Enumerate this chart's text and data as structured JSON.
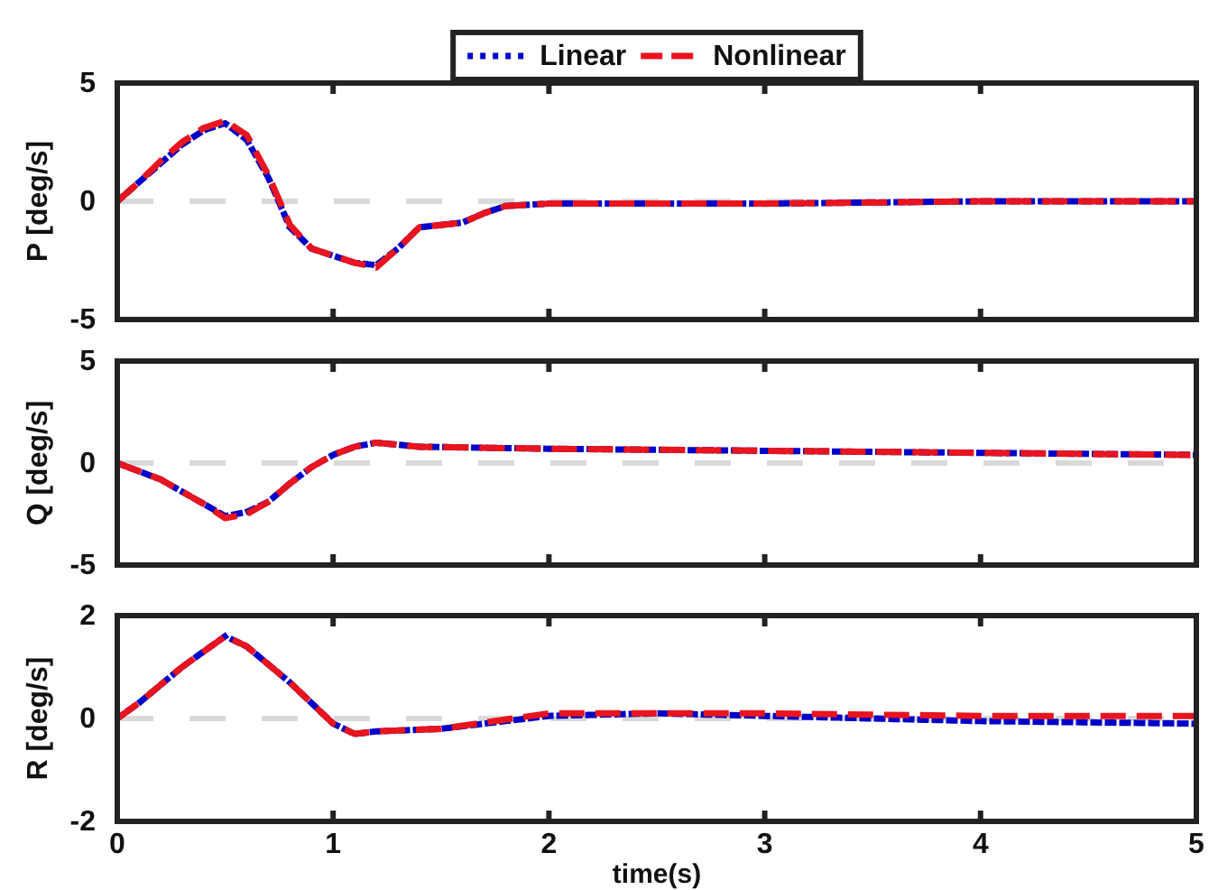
{
  "chart_data": [
    {
      "type": "line",
      "ylabel": "P [deg/s]",
      "xlim": [
        0,
        5
      ],
      "xticks": [
        0,
        1,
        2,
        3,
        4,
        5
      ],
      "ylim": [
        -5,
        5
      ],
      "yticks": [
        -5,
        0,
        5
      ],
      "tick_labels": "y",
      "legend": "top",
      "ref_lines": [
        {
          "axis": "y",
          "value": 0,
          "color": "#d9d9d9",
          "line_style": "dashed"
        }
      ],
      "series": [
        {
          "name": "Linear",
          "color": "#0000c8",
          "line_style": "dotted",
          "x": [
            0,
            0.1,
            0.2,
            0.3,
            0.4,
            0.5,
            0.6,
            0.7,
            0.8,
            0.9,
            1.0,
            1.1,
            1.2,
            1.3,
            1.4,
            1.5,
            1.6,
            1.7,
            1.8,
            2.0,
            2.5,
            3,
            4,
            5
          ],
          "values": [
            0,
            0.8,
            1.6,
            2.4,
            3.0,
            3.3,
            2.6,
            1.0,
            -1.1,
            -2.0,
            -2.3,
            -2.6,
            -2.7,
            -2.0,
            -1.1,
            -1.0,
            -0.9,
            -0.5,
            -0.2,
            -0.1,
            -0.1,
            -0.1,
            0,
            0
          ]
        },
        {
          "name": "Nonlinear",
          "color": "#e8141e",
          "line_style": "dashed",
          "x": [
            0,
            0.1,
            0.2,
            0.3,
            0.4,
            0.5,
            0.6,
            0.7,
            0.8,
            0.9,
            1.0,
            1.1,
            1.2,
            1.3,
            1.4,
            1.5,
            1.6,
            1.7,
            1.8,
            2.0,
            2.5,
            3,
            4,
            5
          ],
          "values": [
            0,
            0.8,
            1.7,
            2.5,
            3.1,
            3.4,
            2.8,
            1.1,
            -1.0,
            -2.0,
            -2.3,
            -2.6,
            -2.8,
            -2.0,
            -1.1,
            -1.0,
            -0.9,
            -0.5,
            -0.2,
            -0.1,
            -0.1,
            -0.1,
            0,
            0
          ]
        }
      ]
    },
    {
      "type": "line",
      "ylabel": "Q [deg/s]",
      "xlim": [
        0,
        5
      ],
      "xticks": [
        0,
        1,
        2,
        3,
        4,
        5
      ],
      "ylim": [
        -5,
        5
      ],
      "yticks": [
        -5,
        0,
        5
      ],
      "tick_labels": "y",
      "ref_lines": [
        {
          "axis": "y",
          "value": 0,
          "color": "#d9d9d9",
          "line_style": "dashed"
        }
      ],
      "series": [
        {
          "color": "#0000c8",
          "line_style": "dotted",
          "x": [
            0,
            0.2,
            0.4,
            0.5,
            0.6,
            0.7,
            0.8,
            0.9,
            1.0,
            1.1,
            1.2,
            1.4,
            2,
            3,
            4,
            5
          ],
          "values": [
            0,
            -0.8,
            -2.0,
            -2.6,
            -2.4,
            -1.9,
            -1.0,
            -0.2,
            0.4,
            0.8,
            1.0,
            0.8,
            0.7,
            0.6,
            0.5,
            0.4
          ]
        },
        {
          "color": "#e8141e",
          "line_style": "dashed",
          "x": [
            0,
            0.2,
            0.4,
            0.5,
            0.6,
            0.7,
            0.8,
            0.9,
            1.0,
            1.1,
            1.2,
            1.4,
            2,
            3,
            4,
            5
          ],
          "values": [
            0,
            -0.8,
            -2.0,
            -2.7,
            -2.5,
            -1.9,
            -1.0,
            -0.2,
            0.4,
            0.8,
            1.0,
            0.8,
            0.7,
            0.6,
            0.5,
            0.4
          ]
        }
      ]
    },
    {
      "type": "line",
      "ylabel": "R [deg/s]",
      "xlabel": "time(s)",
      "xlim": [
        0,
        5
      ],
      "xticks": [
        0,
        1,
        2,
        3,
        4,
        5
      ],
      "ylim": [
        -2,
        2
      ],
      "yticks": [
        -2,
        0,
        2
      ],
      "ref_lines": [
        {
          "axis": "y",
          "value": 0,
          "color": "#d9d9d9",
          "line_style": "dashed"
        }
      ],
      "series": [
        {
          "color": "#0000c8",
          "line_style": "dotted",
          "x": [
            0,
            0.1,
            0.3,
            0.5,
            0.6,
            0.8,
            1.0,
            1.1,
            1.2,
            1.5,
            2,
            2.5,
            3,
            4,
            5
          ],
          "values": [
            0,
            0.3,
            1.0,
            1.6,
            1.4,
            0.7,
            -0.1,
            -0.3,
            -0.25,
            -0.2,
            0.05,
            0.1,
            0.05,
            -0.05,
            -0.1
          ]
        },
        {
          "color": "#e8141e",
          "line_style": "dashed",
          "x": [
            0,
            0.1,
            0.3,
            0.5,
            0.6,
            0.8,
            1.0,
            1.1,
            1.2,
            1.5,
            2,
            2.5,
            3,
            4,
            5
          ],
          "values": [
            0,
            0.3,
            1.0,
            1.6,
            1.4,
            0.7,
            -0.1,
            -0.3,
            -0.25,
            -0.2,
            0.1,
            0.1,
            0.1,
            0.05,
            0.05
          ]
        }
      ]
    }
  ]
}
